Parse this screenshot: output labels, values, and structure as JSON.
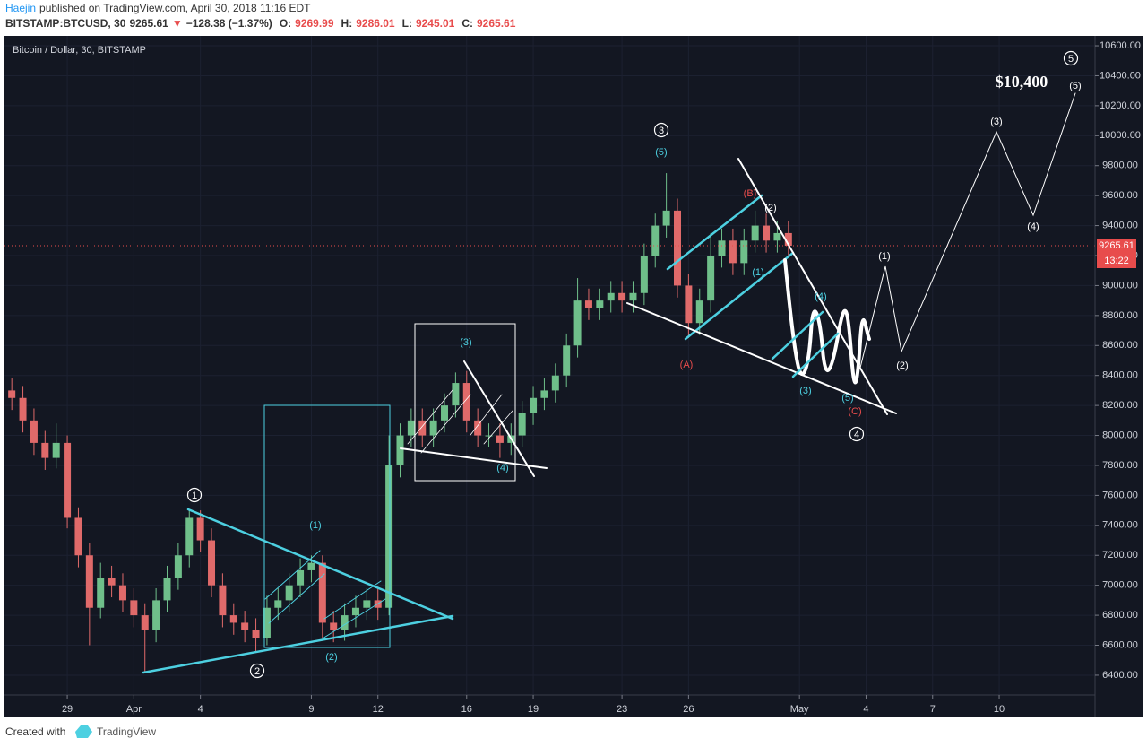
{
  "header": {
    "author": "Haejin",
    "published": "published on TradingView.com, April 30, 2018 11:16 EDT",
    "symbol": "BITSTAMP:BTCUSD, 30",
    "last": "9265.61",
    "arrow": "▼",
    "change": "−128.38 (−1.37%)",
    "ohlc": [
      {
        "label": "O:",
        "value": "9269.99"
      },
      {
        "label": "H:",
        "value": "9286.01"
      },
      {
        "label": "L:",
        "value": "9245.01"
      },
      {
        "label": "C:",
        "value": "9265.61"
      }
    ]
  },
  "chart_data": {
    "type": "candlestick",
    "title": "Bitcoin / Dollar, 30, BITSTAMP",
    "up_color": "#6fbf8a",
    "down_color": "#e06a6a",
    "grid": true,
    "x": [
      -2.5,
      -2,
      -1.5,
      -1,
      -0.5,
      0,
      0.5,
      1,
      1.5,
      2,
      2.5,
      3,
      3.5,
      4,
      4.5,
      5,
      5.5,
      6,
      6.5,
      7,
      7.5,
      8,
      8.5,
      9,
      9.5,
      10,
      10.5,
      11,
      11.5,
      12,
      12.5,
      13,
      13.5,
      14,
      14.5,
      15,
      15.5,
      16,
      16.5,
      17,
      17.5,
      18,
      18.5,
      19,
      19.5,
      20,
      20.5,
      21,
      21.5,
      22,
      22.5,
      23,
      23.5,
      24,
      24.5,
      25,
      25.5,
      26,
      26.5,
      27,
      27.5,
      28,
      28.5,
      29,
      29.5,
      30,
      30.5,
      31,
      31.5,
      32,
      32.5
    ],
    "open": [
      8300,
      8250,
      8100,
      7950,
      7850,
      7950,
      7450,
      7200,
      6850,
      7050,
      7000,
      6900,
      6800,
      6700,
      6900,
      7050,
      7200,
      7450,
      7300,
      7000,
      6800,
      6750,
      6700,
      6650,
      6850,
      6900,
      7000,
      7100,
      7150,
      6750,
      6700,
      6800,
      6850,
      6900,
      6850,
      7800,
      8000,
      8100,
      8000,
      8100,
      8200,
      8350,
      8100,
      8000,
      8000,
      7950,
      8000,
      8150,
      8250,
      8300,
      8400,
      8600,
      8900,
      8850,
      8900,
      8950,
      8900,
      8950,
      9200,
      9400,
      9500,
      9000,
      8750,
      8900,
      9200,
      9300,
      9150,
      9300,
      9400,
      9300,
      9350
    ],
    "high": [
      8380,
      8330,
      8180,
      8030,
      8080,
      8000,
      7520,
      7280,
      7150,
      7130,
      7080,
      6980,
      6880,
      6980,
      7130,
      7280,
      7500,
      7500,
      7380,
      7080,
      6880,
      6830,
      6780,
      6930,
      6980,
      7080,
      7180,
      7200,
      7200,
      6830,
      6880,
      6930,
      6980,
      6980,
      8000,
      8080,
      8180,
      8180,
      8180,
      8280,
      8420,
      8430,
      8180,
      8080,
      8080,
      8080,
      8230,
      8330,
      8380,
      8480,
      8680,
      9050,
      8980,
      8980,
      9030,
      9030,
      9030,
      9280,
      9480,
      9750,
      9580,
      9080,
      8980,
      9350,
      9380,
      9380,
      9380,
      9500,
      9480,
      9430,
      9430
    ],
    "low": [
      8170,
      8020,
      7870,
      7770,
      7780,
      7380,
      7120,
      6600,
      6780,
      6920,
      6820,
      6720,
      6420,
      6620,
      6820,
      6970,
      7120,
      7220,
      6920,
      6720,
      6670,
      6620,
      6550,
      6600,
      6770,
      6820,
      6920,
      7020,
      6650,
      6620,
      6630,
      6720,
      6770,
      6770,
      6800,
      7720,
      7920,
      7920,
      7920,
      8020,
      8120,
      8020,
      7920,
      7920,
      7850,
      7870,
      7920,
      8070,
      8170,
      8220,
      8320,
      8520,
      8770,
      8770,
      8820,
      8820,
      8820,
      8870,
      9120,
      9320,
      8920,
      8650,
      8670,
      8820,
      9120,
      9070,
      9070,
      9220,
      9220,
      9220,
      9190
    ],
    "close": [
      8250,
      8100,
      7950,
      7850,
      7950,
      7450,
      7200,
      6850,
      7050,
      7000,
      6900,
      6800,
      6700,
      6900,
      7050,
      7200,
      7450,
      7300,
      7000,
      6800,
      6750,
      6700,
      6650,
      6850,
      6900,
      7000,
      7100,
      7150,
      6750,
      6700,
      6800,
      6850,
      6900,
      6850,
      7800,
      8000,
      8100,
      8000,
      8100,
      8200,
      8350,
      8100,
      8000,
      8000,
      7950,
      8000,
      8150,
      8250,
      8300,
      8400,
      8600,
      8900,
      8850,
      8900,
      8950,
      8900,
      8950,
      9200,
      9400,
      9500,
      9000,
      8750,
      8900,
      9200,
      9300,
      9150,
      9300,
      9400,
      9300,
      9350,
      9265.61
    ],
    "countdown": "13:22",
    "xlim": [
      -2.83,
      46.32
    ],
    "ylim": [
      6268,
      10666
    ],
    "xticks": [
      {
        "value": 0,
        "label": "29"
      },
      {
        "value": 3,
        "label": "Apr"
      },
      {
        "value": 6,
        "label": "4"
      },
      {
        "value": 11,
        "label": "9"
      },
      {
        "value": 14,
        "label": "12"
      },
      {
        "value": 18,
        "label": "16"
      },
      {
        "value": 21,
        "label": "19"
      },
      {
        "value": 25,
        "label": "23"
      },
      {
        "value": 28,
        "label": "26"
      },
      {
        "value": 33,
        "label": "May"
      },
      {
        "value": 36,
        "label": "4"
      },
      {
        "value": 39,
        "label": "7"
      },
      {
        "value": 42,
        "label": "10"
      }
    ],
    "yticks": [
      {
        "value": 6400,
        "label": "6400.00"
      },
      {
        "value": 6600,
        "label": "6600.00"
      },
      {
        "value": 6800,
        "label": "6800.00"
      },
      {
        "value": 7000,
        "label": "7000.00"
      },
      {
        "value": 7200,
        "label": "7200.00"
      },
      {
        "value": 7400,
        "label": "7400.00"
      },
      {
        "value": 7600,
        "label": "7600.00"
      },
      {
        "value": 7800,
        "label": "7800.00"
      },
      {
        "value": 8000,
        "label": "8000.00"
      },
      {
        "value": 8200,
        "label": "8200.00"
      },
      {
        "value": 8400,
        "label": "8400.00"
      },
      {
        "value": 8600,
        "label": "8600.00"
      },
      {
        "value": 8800,
        "label": "8800.00"
      },
      {
        "value": 9000,
        "label": "9000.00"
      },
      {
        "value": 9200,
        "label": "9200.00"
      },
      {
        "value": 9400,
        "label": "9400.00"
      },
      {
        "value": 9600,
        "label": "9600.00"
      },
      {
        "value": 9800,
        "label": "9800.00"
      },
      {
        "value": 10000,
        "label": "10000.00"
      },
      {
        "value": 10200,
        "label": "10200.00"
      },
      {
        "value": 10400,
        "label": "10400.00"
      },
      {
        "value": 10600,
        "label": "10600.00"
      }
    ],
    "annotations": [
      {
        "text": "1",
        "color": "#ffffff"
      },
      {
        "text": "2",
        "color": "#ffffff"
      },
      {
        "text": "3",
        "color": "#ffffff"
      },
      {
        "text": "4",
        "color": "#ffffff"
      },
      {
        "text": "5",
        "color": "#ffffff"
      },
      {
        "text": "(1)",
        "color": "#4dd0e1"
      },
      {
        "text": "(2)",
        "color": "#4dd0e1"
      },
      {
        "text": "(3)",
        "color": "#4dd0e1"
      },
      {
        "text": "(4)",
        "color": "#4dd0e1"
      },
      {
        "text": "(5)",
        "color": "#4dd0e1"
      },
      {
        "text": "(A)",
        "color": "#e84c4c"
      },
      {
        "text": "(B)",
        "color": "#e84c4c"
      },
      {
        "text": "(2)",
        "color": "#ffffff"
      },
      {
        "text": "(1)",
        "color": "#4dd0e1"
      },
      {
        "text": "(4)",
        "color": "#4dd0e1"
      },
      {
        "text": "(3)",
        "color": "#4dd0e1"
      },
      {
        "text": "(5)",
        "color": "#4dd0e1"
      },
      {
        "text": "(C)",
        "color": "#e84c4c"
      },
      {
        "text": "(1)",
        "color": "#ffffff"
      },
      {
        "text": "(2)",
        "color": "#ffffff"
      },
      {
        "text": "(3)",
        "color": "#ffffff"
      },
      {
        "text": "(4)",
        "color": "#ffffff"
      },
      {
        "text": "(5)",
        "color": "#ffffff"
      },
      {
        "text": "$10,400",
        "color": "#ffffff"
      }
    ]
  },
  "footer": {
    "created": "Created with",
    "brand": "TradingView"
  }
}
